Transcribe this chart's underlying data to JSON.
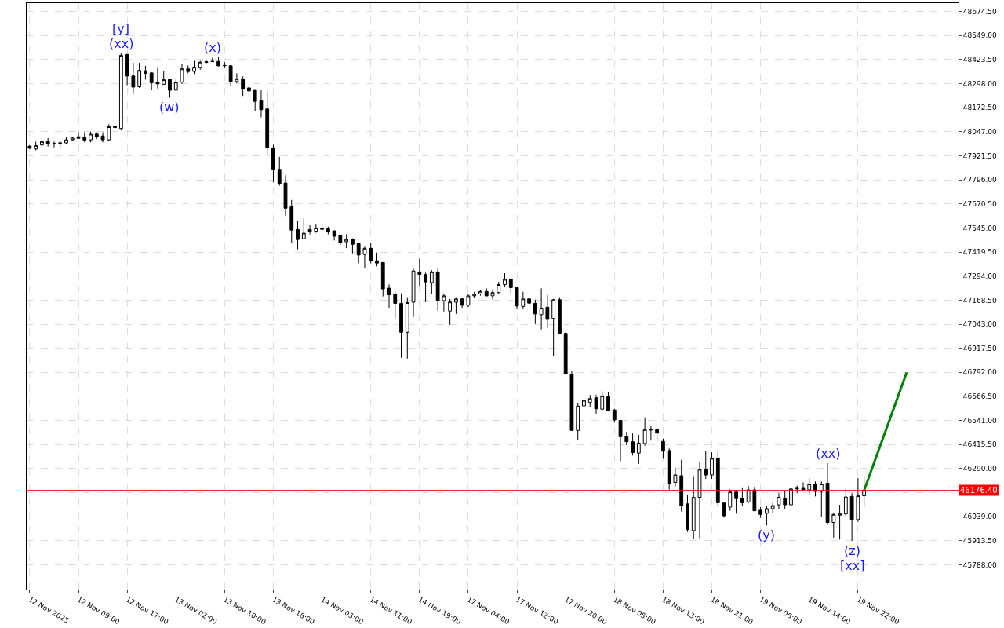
{
  "chart_data": {
    "type": "candlestick",
    "categories": [
      "12 Nov 2025",
      null,
      null,
      null,
      null,
      null,
      null,
      null,
      "12 Nov 09:00",
      null,
      null,
      null,
      null,
      null,
      null,
      null,
      "12 Nov 17:00",
      null,
      null,
      null,
      null,
      null,
      null,
      null,
      "13 Nov 02:00",
      null,
      null,
      null,
      null,
      null,
      null,
      null,
      "13 Nov 10:00",
      null,
      null,
      null,
      null,
      null,
      null,
      null,
      "13 Nov 18:00",
      null,
      null,
      null,
      null,
      null,
      null,
      null,
      "14 Nov 03:00",
      null,
      null,
      null,
      null,
      null,
      null,
      null,
      "14 Nov 11:00",
      null,
      null,
      null,
      null,
      null,
      null,
      null,
      "14 Nov 19:00",
      null,
      null,
      null,
      null,
      null,
      null,
      null,
      "17 Nov 04:00",
      null,
      null,
      null,
      null,
      null,
      null,
      null,
      "17 Nov 12:00",
      null,
      null,
      null,
      null,
      null,
      null,
      null,
      "17 Nov 20:00",
      null,
      null,
      null,
      null,
      null,
      null,
      null,
      "18 Nov 05:00",
      null,
      null,
      null,
      null,
      null,
      null,
      null,
      "18 Nov 13:00",
      null,
      null,
      null,
      null,
      null,
      null,
      null,
      "18 Nov 21:00",
      null,
      null,
      null,
      null,
      null,
      null,
      null,
      "19 Nov 06:00",
      null,
      null,
      null,
      null,
      null,
      null,
      null,
      "19 Nov 14:00",
      null,
      null,
      null,
      null,
      null,
      null,
      null,
      "19 Nov 22:00",
      null,
      null,
      null,
      null,
      null,
      null,
      null,
      null,
      null,
      null,
      null,
      null,
      null,
      null,
      null,
      null
    ],
    "ohlc": [
      [
        47972,
        47976,
        47957,
        47961
      ],
      [
        47957,
        47995,
        47950,
        47975
      ],
      [
        47978,
        48012,
        47960,
        47996
      ],
      [
        47999,
        48014,
        47970,
        47983
      ],
      [
        47986,
        47996,
        47966,
        47984
      ],
      [
        47987,
        47999,
        47966,
        47989
      ],
      [
        47989,
        48018,
        47985,
        48005
      ],
      [
        48005,
        48018,
        48001,
        48014
      ],
      [
        48021,
        48044,
        48009,
        48013
      ],
      [
        48020,
        48044,
        47992,
        48004
      ],
      [
        48005,
        48048,
        47992,
        48034
      ],
      [
        48035,
        48044,
        48009,
        48021
      ],
      [
        48025,
        48044,
        47992,
        48005
      ],
      [
        48005,
        48086,
        48001,
        48073
      ],
      [
        48076,
        48083,
        48062,
        48069
      ],
      [
        48064,
        48456,
        48054,
        48446
      ],
      [
        48450,
        48454,
        48290,
        48338
      ],
      [
        48338,
        48407,
        48244,
        48280
      ],
      [
        48282,
        48407,
        48276,
        48367
      ],
      [
        48365,
        48391,
        48319,
        48352
      ],
      [
        48354,
        48358,
        48263,
        48302
      ],
      [
        48306,
        48384,
        48273,
        48297
      ],
      [
        48295,
        48365,
        48293,
        48318
      ],
      [
        48322,
        48322,
        48225,
        48263
      ],
      [
        48264,
        48319,
        48263,
        48306
      ],
      [
        48306,
        48401,
        48297,
        48375
      ],
      [
        48375,
        48393,
        48352,
        48361
      ],
      [
        48362,
        48417,
        48348,
        48384
      ],
      [
        48383,
        48417,
        48371,
        48410
      ],
      [
        48409,
        48424,
        48404,
        48412
      ],
      [
        48413,
        48434,
        48410,
        48414
      ],
      [
        48414,
        48436,
        48388,
        48391
      ],
      [
        48393,
        48410,
        48378,
        48392
      ],
      [
        48391,
        48395,
        48286,
        48309
      ],
      [
        48309,
        48352,
        48299,
        48322
      ],
      [
        48322,
        48336,
        48234,
        48271
      ],
      [
        48276,
        48289,
        48234,
        48260
      ],
      [
        48263,
        48263,
        48156,
        48205
      ],
      [
        48208,
        48263,
        48123,
        48162
      ],
      [
        48166,
        48258,
        47927,
        47966
      ],
      [
        47963,
        47979,
        47783,
        47852
      ],
      [
        47851,
        47916,
        47766,
        47776
      ],
      [
        47780,
        47820,
        47607,
        47648
      ],
      [
        47655,
        47691,
        47465,
        47534
      ],
      [
        47537,
        47580,
        47434,
        47485
      ],
      [
        47489,
        47596,
        47486,
        47518
      ],
      [
        47537,
        47563,
        47512,
        47527
      ],
      [
        47528,
        47567,
        47520,
        47545
      ],
      [
        47545,
        47565,
        47521,
        47538
      ],
      [
        47541,
        47552,
        47512,
        47525
      ],
      [
        47530,
        47532,
        47480,
        47502
      ],
      [
        47506,
        47512,
        47456,
        47469
      ],
      [
        47473,
        47512,
        47440,
        47485
      ],
      [
        47486,
        47491,
        47413,
        47460
      ],
      [
        47463,
        47463,
        47361,
        47404
      ],
      [
        47407,
        47447,
        47338,
        47439
      ],
      [
        47439,
        47469,
        47361,
        47374
      ],
      [
        47374,
        47417,
        47345,
        47362
      ],
      [
        47365,
        47365,
        47188,
        47227
      ],
      [
        47231,
        47251,
        47129,
        47197
      ],
      [
        47199,
        47212,
        47073,
        47152
      ],
      [
        47152,
        47204,
        46868,
        47001
      ],
      [
        47001,
        47184,
        46864,
        47156
      ],
      [
        47158,
        47332,
        47081,
        47321
      ],
      [
        47316,
        47384,
        47244,
        47303
      ],
      [
        47302,
        47312,
        47158,
        47264
      ],
      [
        47260,
        47325,
        47201,
        47316
      ],
      [
        47316,
        47332,
        47114,
        47166
      ],
      [
        47166,
        47204,
        47110,
        47191
      ],
      [
        47112,
        47175,
        47040,
        47159
      ],
      [
        47158,
        47184,
        47097,
        47175
      ],
      [
        47175,
        47181,
        47129,
        47142
      ],
      [
        47142,
        47201,
        47132,
        47191
      ],
      [
        47191,
        47212,
        47181,
        47199
      ],
      [
        47201,
        47221,
        47192,
        47214
      ],
      [
        47214,
        47230,
        47188,
        47191
      ],
      [
        47191,
        47221,
        47172,
        47208
      ],
      [
        47208,
        47264,
        47199,
        47250
      ],
      [
        47250,
        47309,
        47240,
        47277
      ],
      [
        47277,
        47286,
        47199,
        47234
      ],
      [
        47234,
        47238,
        47125,
        47138
      ],
      [
        47136,
        47212,
        47123,
        47175
      ],
      [
        47175,
        47179,
        47133,
        47153
      ],
      [
        47152,
        47171,
        47044,
        47097
      ],
      [
        47093,
        47230,
        47016,
        47127
      ],
      [
        47132,
        47195,
        47022,
        47068
      ],
      [
        47073,
        47175,
        46877,
        47171
      ],
      [
        47171,
        47184,
        46992,
        46996
      ],
      [
        46995,
        47003,
        46780,
        46783
      ],
      [
        46783,
        46799,
        46488,
        46489
      ],
      [
        46489,
        46630,
        46440,
        46616
      ],
      [
        46617,
        46669,
        46609,
        46646
      ],
      [
        46636,
        46674,
        46609,
        46655
      ],
      [
        46659,
        46674,
        46577,
        46602
      ],
      [
        46600,
        46694,
        46593,
        46669
      ],
      [
        46665,
        46691,
        46592,
        46593
      ],
      [
        46596,
        46602,
        46530,
        46544
      ],
      [
        46541,
        46541,
        46329,
        46456
      ],
      [
        46459,
        46482,
        46413,
        46430
      ],
      [
        46430,
        46473,
        46358,
        46374
      ],
      [
        46371,
        46466,
        46315,
        46423
      ],
      [
        46421,
        46557,
        46410,
        46493
      ],
      [
        46491,
        46511,
        46436,
        46494
      ],
      [
        46493,
        46502,
        46432,
        46475
      ],
      [
        46432,
        46447,
        46341,
        46381
      ],
      [
        46384,
        46395,
        46181,
        46210
      ],
      [
        46218,
        46295,
        46197,
        46257
      ],
      [
        46253,
        46336,
        46066,
        46097
      ],
      [
        46106,
        46153,
        45959,
        45972
      ],
      [
        45966,
        46247,
        45924,
        46140
      ],
      [
        46140,
        46325,
        45926,
        46286
      ],
      [
        46286,
        46384,
        46236,
        46257
      ],
      [
        46257,
        46375,
        46236,
        46344
      ],
      [
        46344,
        46380,
        46094,
        46112
      ],
      [
        46110,
        46114,
        46034,
        46044
      ],
      [
        46089,
        46181,
        46070,
        46168
      ],
      [
        46168,
        46175,
        46055,
        46133
      ],
      [
        46136,
        46188,
        46093,
        46112
      ],
      [
        46116,
        46201,
        46109,
        46179
      ],
      [
        46179,
        46191,
        46069,
        46070
      ],
      [
        46073,
        46090,
        46033,
        46051
      ],
      [
        46057,
        46097,
        45994,
        46081
      ],
      [
        46081,
        46112,
        46060,
        46097
      ],
      [
        46101,
        46162,
        46079,
        46140
      ],
      [
        46136,
        46175,
        46079,
        46101
      ],
      [
        46101,
        46188,
        46064,
        46184
      ],
      [
        46184,
        46201,
        46162,
        46187
      ],
      [
        46187,
        46218,
        46175,
        46181
      ],
      [
        46179,
        46238,
        46155,
        46210
      ],
      [
        46210,
        46223,
        46145,
        46171
      ],
      [
        46171,
        46223,
        46040,
        46210
      ],
      [
        46214,
        46319,
        45996,
        46009
      ],
      [
        46009,
        46057,
        45930,
        46051
      ],
      [
        46047,
        46101,
        45920,
        46055
      ],
      [
        46053,
        46184,
        46035,
        46142
      ],
      [
        46145,
        46162,
        45913,
        46024
      ],
      [
        46024,
        46240,
        46012,
        46148
      ],
      [
        46148,
        46249,
        46090,
        46176.4
      ],
      null,
      null,
      null,
      null,
      null,
      null,
      null,
      null,
      null,
      null,
      null,
      null,
      null,
      null,
      null
    ],
    "series": [
      {
        "type": "line",
        "color": "#008000",
        "values": [
          null,
          null,
          null,
          null,
          null,
          null,
          null,
          null,
          null,
          null,
          null,
          null,
          null,
          null,
          null,
          null,
          null,
          null,
          null,
          null,
          null,
          null,
          null,
          null,
          null,
          null,
          null,
          null,
          null,
          null,
          null,
          null,
          null,
          null,
          null,
          null,
          null,
          null,
          null,
          null,
          null,
          null,
          null,
          null,
          null,
          null,
          null,
          null,
          null,
          null,
          null,
          null,
          null,
          null,
          null,
          null,
          null,
          null,
          null,
          null,
          null,
          null,
          null,
          null,
          null,
          null,
          null,
          null,
          null,
          null,
          null,
          null,
          null,
          null,
          null,
          null,
          null,
          null,
          null,
          null,
          null,
          null,
          null,
          null,
          null,
          null,
          null,
          null,
          null,
          null,
          null,
          null,
          null,
          null,
          null,
          null,
          null,
          null,
          null,
          null,
          null,
          null,
          null,
          null,
          null,
          null,
          null,
          null,
          null,
          null,
          null,
          null,
          null,
          null,
          null,
          null,
          null,
          null,
          null,
          null,
          null,
          null,
          null,
          null,
          null,
          null,
          null,
          null,
          null,
          null,
          null,
          null,
          null,
          null,
          null,
          null,
          null,
          46176.4,
          null,
          null,
          null,
          null,
          null,
          null,
          46792,
          null,
          null,
          null,
          null,
          null,
          null,
          null,
          null
        ]
      }
    ],
    "ylim": [
      45659,
      48718
    ],
    "yticks": [
      {
        "value": 45788,
        "label": "45788.00"
      },
      {
        "value": 45913.5,
        "label": "45913.50"
      },
      {
        "value": 46039,
        "label": "46039.00"
      },
      {
        "value": 46164.5,
        "label": null
      },
      {
        "value": 46290,
        "label": "46290.00"
      },
      {
        "value": 46415.5,
        "label": "46415.50"
      },
      {
        "value": 46541,
        "label": "46541.00"
      },
      {
        "value": 46666.5,
        "label": "46666.50"
      },
      {
        "value": 46792,
        "label": "46792.00"
      },
      {
        "value": 46917.5,
        "label": "46917.50"
      },
      {
        "value": 47043,
        "label": "47043.00"
      },
      {
        "value": 47168.5,
        "label": "47168.50"
      },
      {
        "value": 47294,
        "label": "47294.00"
      },
      {
        "value": 47419.5,
        "label": "47419.50"
      },
      {
        "value": 47545,
        "label": "47545.00"
      },
      {
        "value": 47670.5,
        "label": "47670.50"
      },
      {
        "value": 47796,
        "label": "47796.00"
      },
      {
        "value": 47921.5,
        "label": "47921.50"
      },
      {
        "value": 48047,
        "label": "48047.00"
      },
      {
        "value": 48172.5,
        "label": "48172.50"
      },
      {
        "value": 48298,
        "label": "48298.00"
      },
      {
        "value": 48423.5,
        "label": "48423.50"
      },
      {
        "value": 48549,
        "label": "48549.00"
      },
      {
        "value": 48674.5,
        "label": "48674.50"
      }
    ],
    "ref_lines": [
      {
        "axis": "y",
        "value": 46176.4,
        "label": "46176.40",
        "color": "#ff0000"
      }
    ],
    "annotations": [
      {
        "text": "(xx)",
        "y": 48456
      },
      {
        "text": "[y]",
        "y": 48456
      },
      {
        "text": "(w)",
        "y": 48225
      },
      {
        "text": "(x)",
        "y": 48434
      },
      {
        "text": "(xx)",
        "y": 46319
      },
      {
        "text": "(y)",
        "y": 45994
      },
      {
        "text": "(z)",
        "y": 45913
      },
      {
        "text": "[xx]",
        "y": 45913
      }
    ],
    "grid": true
  }
}
